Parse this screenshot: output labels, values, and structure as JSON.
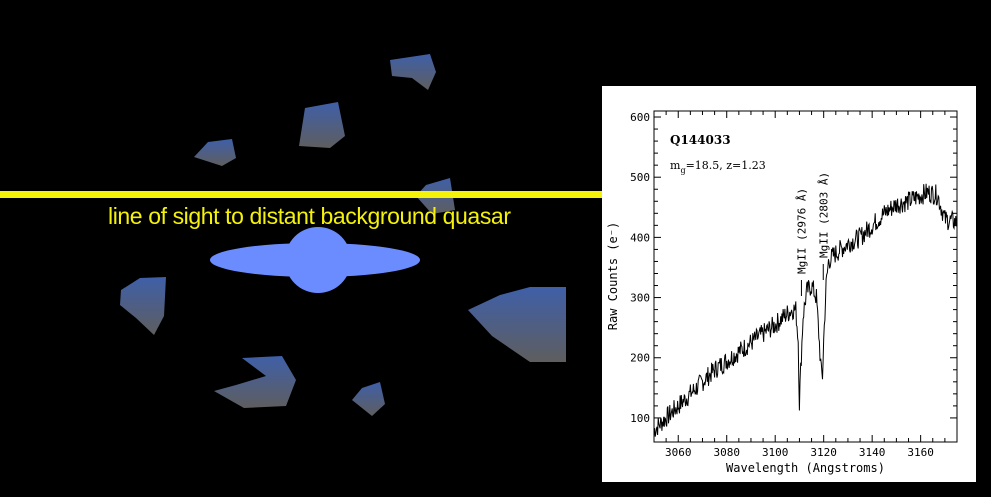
{
  "scene": {
    "sightline_label": "line of sight to distant background quasar",
    "colors": {
      "sightline": "#f5f20a",
      "galaxy": "#6b8cff",
      "cloud_top": "#3f5fa8",
      "cloud_bottom": "#5e5e5e"
    },
    "icons": [
      "galaxy-icon",
      "gas-cloud-icon"
    ]
  },
  "chart_data": {
    "type": "line",
    "title": "Q144033",
    "subtitle_prefix": "m",
    "subtitle_sub": "g",
    "subtitle_rest": "=18.5,  z=1.23",
    "xlabel": "Wavelength (Angstroms)",
    "ylabel": "Raw Counts (e⁻)",
    "xlim": [
      3050,
      3175
    ],
    "ylim": [
      60,
      610
    ],
    "xticks": [
      3060,
      3080,
      3100,
      3120,
      3140,
      3160
    ],
    "yticks": [
      100,
      200,
      300,
      400,
      500,
      600
    ],
    "grid": false,
    "annotations": [
      {
        "text": "MgII (2976 Å)",
        "x": 3110
      },
      {
        "text": "MgII (2803 Å)",
        "x": 3119
      }
    ],
    "series": [
      {
        "x": [
          3050,
          3055,
          3060,
          3065,
          3070,
          3075,
          3080,
          3085,
          3090,
          3095,
          3100,
          3104,
          3107,
          3108.5,
          3109.5,
          3110,
          3110.5,
          3111.5,
          3113,
          3115,
          3117,
          3118,
          3119,
          3119.5,
          3120,
          3121,
          3122,
          3124,
          3127,
          3130,
          3135,
          3140,
          3145,
          3150,
          3155,
          3160,
          3163,
          3167,
          3170,
          3175
        ],
        "y": [
          80,
          100,
          120,
          140,
          160,
          180,
          195,
          210,
          225,
          240,
          255,
          270,
          280,
          280,
          230,
          125,
          180,
          270,
          310,
          320,
          300,
          240,
          175,
          170,
          230,
          320,
          360,
          370,
          380,
          390,
          400,
          420,
          440,
          455,
          460,
          470,
          475,
          470,
          430,
          425
        ]
      }
    ]
  }
}
